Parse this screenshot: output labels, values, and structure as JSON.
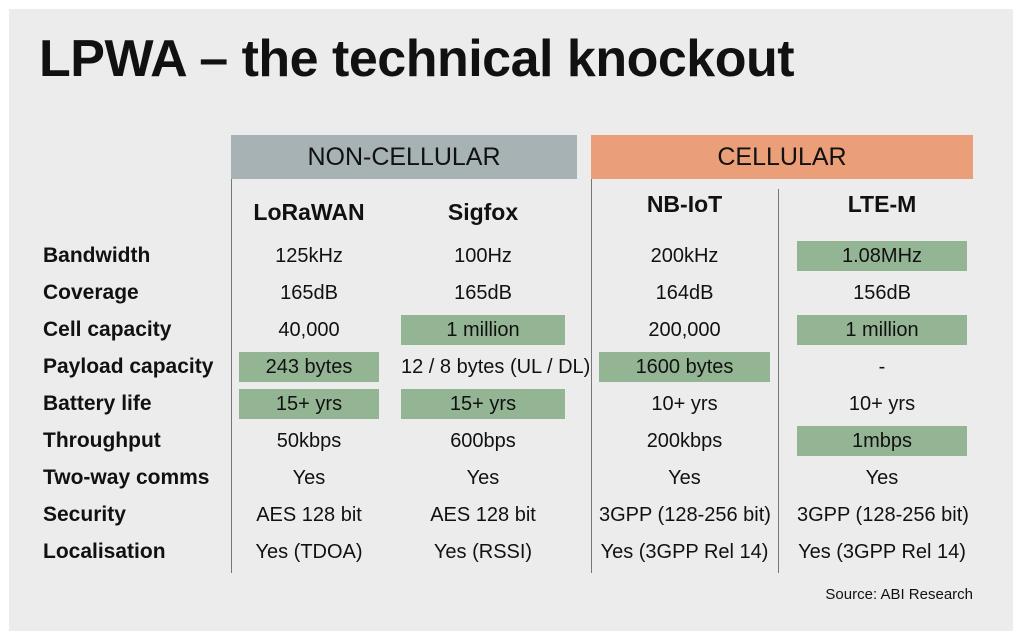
{
  "title": "LPWA – the technical knockout",
  "groups": {
    "noncellular": "NON-CELLULAR",
    "cellular": "CELLULAR"
  },
  "columns": [
    "LoRaWAN",
    "Sigfox",
    "NB-IoT",
    "LTE-M"
  ],
  "rows": [
    {
      "label": "Bandwidth",
      "values": [
        "125kHz",
        "100Hz",
        "200kHz",
        "1.08MHz"
      ],
      "highlight": [
        false,
        false,
        false,
        true
      ]
    },
    {
      "label": "Coverage",
      "values": [
        "165dB",
        "165dB",
        "164dB",
        "156dB"
      ],
      "highlight": [
        false,
        false,
        false,
        false
      ]
    },
    {
      "label": "Cell capacity",
      "values": [
        "40,000",
        "1 million",
        "200,000",
        "1 million"
      ],
      "highlight": [
        false,
        true,
        false,
        true
      ]
    },
    {
      "label": "Payload capacity",
      "values": [
        "243 bytes",
        "12 / 8 bytes (UL / DL)",
        "1600 bytes",
        "-"
      ],
      "highlight": [
        true,
        false,
        true,
        false
      ]
    },
    {
      "label": "Battery life",
      "values": [
        "15+ yrs",
        "15+ yrs",
        "10+ yrs",
        "10+ yrs"
      ],
      "highlight": [
        true,
        true,
        false,
        false
      ]
    },
    {
      "label": "Throughput",
      "values": [
        "50kbps",
        "600bps",
        "200kbps",
        "1mbps"
      ],
      "highlight": [
        false,
        false,
        false,
        true
      ]
    },
    {
      "label": "Two-way comms",
      "values": [
        "Yes",
        "Yes",
        "Yes",
        "Yes"
      ],
      "highlight": [
        false,
        false,
        false,
        false
      ]
    },
    {
      "label": "Security",
      "values": [
        "AES 128 bit",
        "AES 128 bit",
        "3GPP (128-256 bit)",
        "3GPP (128-256 bit)"
      ],
      "highlight": [
        false,
        false,
        false,
        false
      ]
    },
    {
      "label": "Localisation",
      "values": [
        "Yes (TDOA)",
        "Yes (RSSI)",
        "Yes (3GPP Rel 14)",
        "Yes (3GPP Rel 14)"
      ],
      "highlight": [
        false,
        false,
        false,
        false
      ]
    }
  ],
  "source": "Source: ABI Research",
  "colors": {
    "background": "#ececec",
    "noncellular_header": "#a7b2b5",
    "cellular_header": "#eb9f79",
    "highlight": "#94b594",
    "divider": "#777777"
  }
}
